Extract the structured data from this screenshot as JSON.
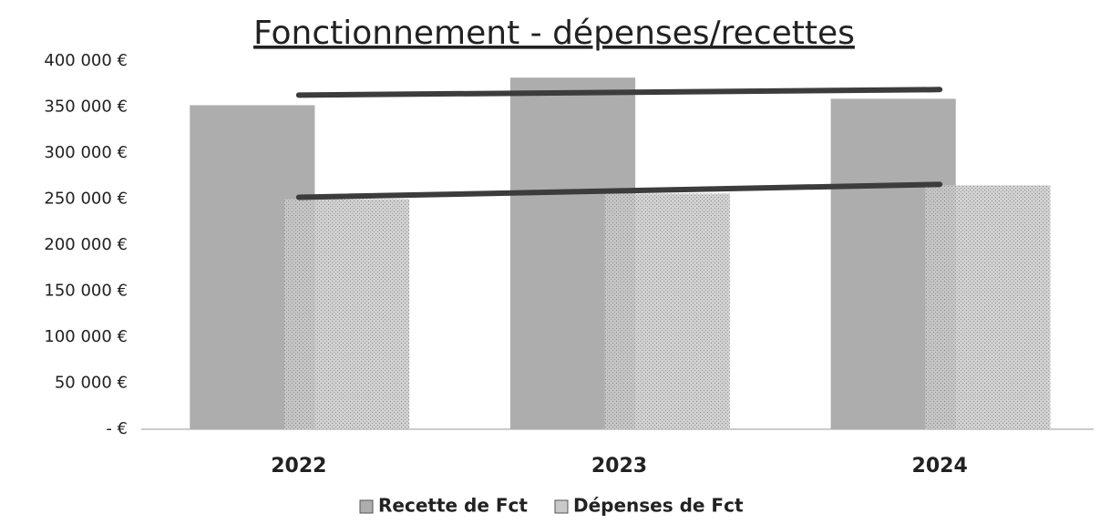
{
  "chart_data": {
    "type": "bar",
    "title": "Fonctionnement - dépenses/recettes",
    "categories": [
      "2022",
      "2023",
      "2024"
    ],
    "series": [
      {
        "name": "Recette de Fct",
        "color": "#adadad",
        "values": [
          352000,
          382000,
          359000
        ]
      },
      {
        "name": "Dépenses de Fct",
        "color": "#c9c9c9",
        "values": [
          250000,
          256000,
          265000
        ]
      }
    ],
    "trend_lines": [
      {
        "color": "#3c3c3c",
        "values": [
          363000,
          369000
        ]
      },
      {
        "color": "#3c3c3c",
        "values": [
          252000,
          266000
        ]
      }
    ],
    "ylim": [
      0,
      400000
    ],
    "yticks": [
      {
        "value": 0,
        "label": "-   €"
      },
      {
        "value": 50000,
        "label": "50 000 €"
      },
      {
        "value": 100000,
        "label": "100 000 €"
      },
      {
        "value": 150000,
        "label": "150 000 €"
      },
      {
        "value": 200000,
        "label": "200 000 €"
      },
      {
        "value": 250000,
        "label": "250 000 €"
      },
      {
        "value": 300000,
        "label": "300 000 €"
      },
      {
        "value": 350000,
        "label": "350 000 €"
      },
      {
        "value": 400000,
        "label": "400 000 €"
      }
    ],
    "grid": false,
    "legend": "bottom"
  }
}
